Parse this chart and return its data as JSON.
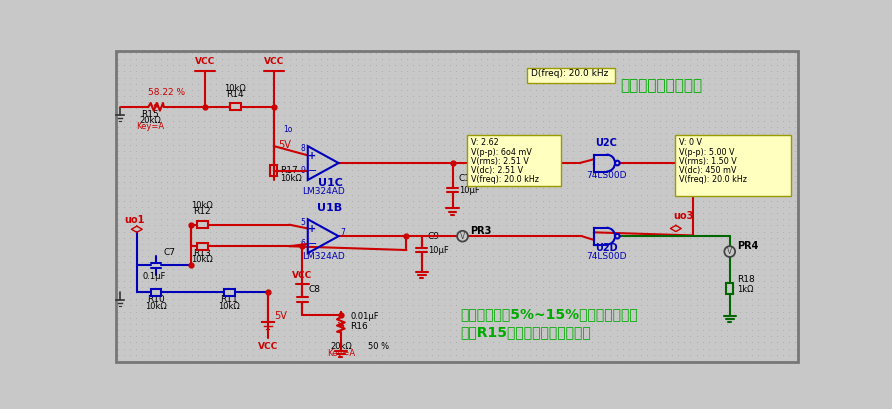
{
  "bg_color": "#c8c8c8",
  "wire_red": "#cc0000",
  "wire_blue": "#0000bb",
  "wire_green": "#006600",
  "text_green": "#00aa00",
  "text_blue": "#0000bb",
  "text_red": "#cc0000",
  "label_bg": "#ffffc0",
  "label_border": "#999900",
  "title_text": "与非门用于波形整形",
  "bottom_text1": "产生占空比何5%~15%的窄脉宽方波，",
  "bottom_text2": "调节R15可以改变方波的占空比",
  "dfreq_label": "D(freq): 20.0 kHz",
  "probe5_V": "V: 2.62",
  "probe5_pp": "V(p-p): 6o4 mV",
  "probe5_rms": "V(rms): 2.51 V",
  "probe5_dc": "V(dc): 2.51 V",
  "probe5_freq": "V(freq): 20.0 kHz",
  "probe4_V": "V: 0 V",
  "probe4_pp": "V(p-p): 5.00 V",
  "probe4_rms": "V(rms): 1.50 V",
  "probe4_dc": "V(dc): 450 mV",
  "probe4_freq": "V(freq): 20.0 kHz"
}
